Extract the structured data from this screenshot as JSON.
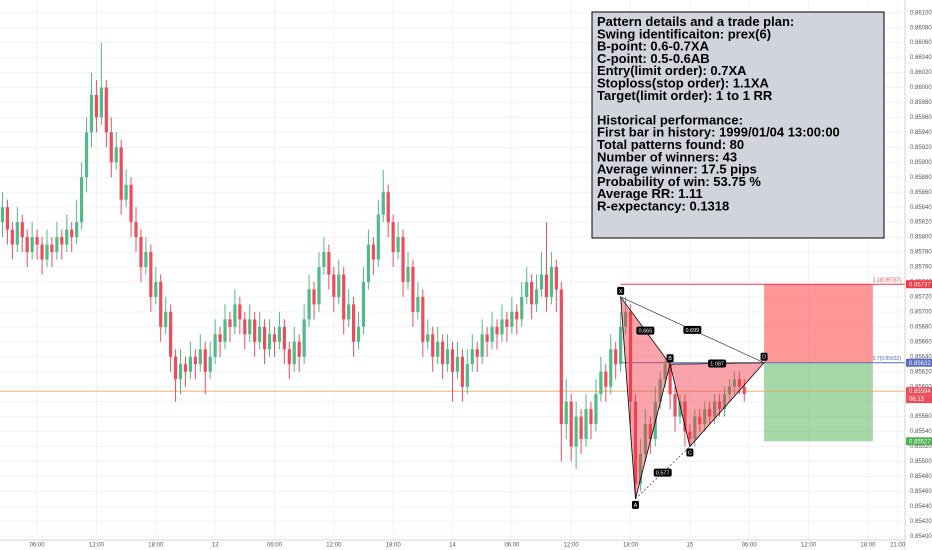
{
  "chart_data": {
    "type": "candlestick",
    "up_color": "#53b987",
    "down_color": "#eb4d5c",
    "grid": true,
    "xlim": [
      -0.5,
      182.5
    ],
    "ylim": [
      0.85395,
      0.86117
    ],
    "xticks": [
      {
        "value": 7,
        "label": "06:00"
      },
      {
        "value": 19,
        "label": "12:00"
      },
      {
        "value": 31,
        "label": "18:00"
      },
      {
        "value": 43,
        "label": "13"
      },
      {
        "value": 55,
        "label": "06:00"
      },
      {
        "value": 67,
        "label": "12:00"
      },
      {
        "value": 79,
        "label": "18:00"
      },
      {
        "value": 91,
        "label": "14"
      },
      {
        "value": 103,
        "label": "06:00"
      },
      {
        "value": 115,
        "label": "12:00"
      },
      {
        "value": 127,
        "label": "18:00"
      },
      {
        "value": 139,
        "label": "15"
      },
      {
        "value": 151,
        "label": "06:00"
      },
      {
        "value": 163,
        "label": "12:00"
      },
      {
        "value": 175,
        "label": "18:00"
      },
      {
        "value": 181,
        "label": "21:00"
      }
    ],
    "yticks": [
      {
        "value": 0.861,
        "label": "0.86100"
      },
      {
        "value": 0.8608,
        "label": "0.86080"
      },
      {
        "value": 0.8606,
        "label": "0.86060"
      },
      {
        "value": 0.8604,
        "label": "0.86040"
      },
      {
        "value": 0.8602,
        "label": "0.86020"
      },
      {
        "value": 0.86,
        "label": "0.86000"
      },
      {
        "value": 0.8598,
        "label": "0.85980"
      },
      {
        "value": 0.8596,
        "label": "0.85960"
      },
      {
        "value": 0.8594,
        "label": "0.85940"
      },
      {
        "value": 0.8592,
        "label": "0.85920"
      },
      {
        "value": 0.859,
        "label": "0.85900"
      },
      {
        "value": 0.8588,
        "label": "0.85880"
      },
      {
        "value": 0.8586,
        "label": "0.85860"
      },
      {
        "value": 0.8584,
        "label": "0.85840"
      },
      {
        "value": 0.8582,
        "label": "0.85820"
      },
      {
        "value": 0.858,
        "label": "0.85800"
      },
      {
        "value": 0.8578,
        "label": "0.85780"
      },
      {
        "value": 0.8576,
        "label": "0.85760"
      },
      {
        "value": 0.8574,
        "label": "0.85740"
      },
      {
        "value": 0.8572,
        "label": "0.85720"
      },
      {
        "value": 0.857,
        "label": "0.85700"
      },
      {
        "value": 0.8568,
        "label": "0.85680"
      },
      {
        "value": 0.8566,
        "label": "0.85660"
      },
      {
        "value": 0.8564,
        "label": "0.85640"
      },
      {
        "value": 0.8562,
        "label": "0.85620"
      },
      {
        "value": 0.856,
        "label": "0.85600"
      },
      {
        "value": 0.8558,
        "label": "0.85580"
      },
      {
        "value": 0.8556,
        "label": "0.85560"
      },
      {
        "value": 0.8554,
        "label": "0.85540"
      },
      {
        "value": 0.8552,
        "label": "0.85520"
      },
      {
        "value": 0.855,
        "label": "0.85500"
      },
      {
        "value": 0.8548,
        "label": "0.85480"
      },
      {
        "value": 0.8546,
        "label": "0.85460"
      },
      {
        "value": 0.8544,
        "label": "0.85440"
      },
      {
        "value": 0.8542,
        "label": "0.85420"
      },
      {
        "value": 0.854,
        "label": "0.85400"
      }
    ],
    "ohlc": [
      [
        0.8582,
        0.8586,
        0.858,
        0.8584
      ],
      [
        0.8584,
        0.8585,
        0.8579,
        0.8581
      ],
      [
        0.8581,
        0.8582,
        0.8577,
        0.8579
      ],
      [
        0.8579,
        0.8584,
        0.8578,
        0.8582
      ],
      [
        0.8582,
        0.8583,
        0.8578,
        0.858
      ],
      [
        0.858,
        0.8581,
        0.8576,
        0.8578
      ],
      [
        0.8578,
        0.8582,
        0.8577,
        0.858
      ],
      [
        0.858,
        0.8581,
        0.8577,
        0.8579
      ],
      [
        0.8579,
        0.858,
        0.8575,
        0.8577
      ],
      [
        0.8577,
        0.8581,
        0.8576,
        0.8579
      ],
      [
        0.8579,
        0.858,
        0.8576,
        0.8578
      ],
      [
        0.8578,
        0.8582,
        0.8577,
        0.858
      ],
      [
        0.858,
        0.8581,
        0.8577,
        0.8579
      ],
      [
        0.8579,
        0.8583,
        0.8578,
        0.8581
      ],
      [
        0.8581,
        0.8582,
        0.8578,
        0.858
      ],
      [
        0.858,
        0.8585,
        0.8579,
        0.8582
      ],
      [
        0.8582,
        0.859,
        0.8581,
        0.8588
      ],
      [
        0.8588,
        0.8596,
        0.8586,
        0.8594
      ],
      [
        0.8594,
        0.8602,
        0.8592,
        0.8599
      ],
      [
        0.8599,
        0.8601,
        0.8594,
        0.8596
      ],
      [
        0.8596,
        0.8606,
        0.8595,
        0.86
      ],
      [
        0.86,
        0.8601,
        0.8592,
        0.8594
      ],
      [
        0.8594,
        0.8596,
        0.8588,
        0.859
      ],
      [
        0.859,
        0.8594,
        0.8589,
        0.8592
      ],
      [
        0.8592,
        0.8593,
        0.8583,
        0.8585
      ],
      [
        0.8585,
        0.8589,
        0.8584,
        0.8587
      ],
      [
        0.8587,
        0.8588,
        0.858,
        0.8582
      ],
      [
        0.8582,
        0.8584,
        0.8578,
        0.858
      ],
      [
        0.858,
        0.8581,
        0.8574,
        0.8576
      ],
      [
        0.8576,
        0.858,
        0.8575,
        0.8578
      ],
      [
        0.8578,
        0.8579,
        0.857,
        0.8572
      ],
      [
        0.8572,
        0.8576,
        0.8571,
        0.8574
      ],
      [
        0.8574,
        0.8575,
        0.8566,
        0.8568
      ],
      [
        0.8568,
        0.8572,
        0.8567,
        0.857
      ],
      [
        0.857,
        0.8571,
        0.8562,
        0.8564
      ],
      [
        0.8564,
        0.8565,
        0.8558,
        0.8561
      ],
      [
        0.8561,
        0.8565,
        0.8559,
        0.8563
      ],
      [
        0.8563,
        0.8564,
        0.856,
        0.8562
      ],
      [
        0.8562,
        0.8566,
        0.8561,
        0.8564
      ],
      [
        0.8564,
        0.8565,
        0.8561,
        0.8563
      ],
      [
        0.8563,
        0.8567,
        0.8562,
        0.8565
      ],
      [
        0.8565,
        0.8566,
        0.8559,
        0.8562
      ],
      [
        0.8562,
        0.8566,
        0.8561,
        0.8564
      ],
      [
        0.8564,
        0.8569,
        0.8563,
        0.8567
      ],
      [
        0.8567,
        0.8568,
        0.8564,
        0.8566
      ],
      [
        0.8566,
        0.8571,
        0.8565,
        0.8569
      ],
      [
        0.8569,
        0.857,
        0.8566,
        0.8568
      ],
      [
        0.8568,
        0.8573,
        0.8567,
        0.8571
      ],
      [
        0.8571,
        0.8572,
        0.8567,
        0.8569
      ],
      [
        0.8569,
        0.857,
        0.8565,
        0.8567
      ],
      [
        0.8567,
        0.8571,
        0.8566,
        0.8569
      ],
      [
        0.8569,
        0.857,
        0.8564,
        0.8566
      ],
      [
        0.8566,
        0.857,
        0.8565,
        0.8568
      ],
      [
        0.8568,
        0.8569,
        0.8563,
        0.8565
      ],
      [
        0.8565,
        0.8569,
        0.8564,
        0.8567
      ],
      [
        0.8567,
        0.8568,
        0.8564,
        0.8566
      ],
      [
        0.8566,
        0.857,
        0.8565,
        0.8568
      ],
      [
        0.8568,
        0.8569,
        0.8563,
        0.8565
      ],
      [
        0.8565,
        0.8566,
        0.8561,
        0.8563
      ],
      [
        0.8563,
        0.8568,
        0.8562,
        0.8566
      ],
      [
        0.8566,
        0.8567,
        0.8562,
        0.8564
      ],
      [
        0.8564,
        0.8571,
        0.8563,
        0.8569
      ],
      [
        0.8569,
        0.8575,
        0.8568,
        0.8573
      ],
      [
        0.8573,
        0.8574,
        0.8569,
        0.8571
      ],
      [
        0.8571,
        0.8578,
        0.857,
        0.8576
      ],
      [
        0.8576,
        0.858,
        0.8575,
        0.8578
      ],
      [
        0.8578,
        0.8579,
        0.8573,
        0.8575
      ],
      [
        0.8575,
        0.8576,
        0.857,
        0.8572
      ],
      [
        0.8572,
        0.8577,
        0.8571,
        0.8575
      ],
      [
        0.8575,
        0.8576,
        0.8567,
        0.8569
      ],
      [
        0.8569,
        0.8573,
        0.8568,
        0.8571
      ],
      [
        0.8571,
        0.8572,
        0.8564,
        0.8566
      ],
      [
        0.8566,
        0.857,
        0.8565,
        0.8568
      ],
      [
        0.8568,
        0.8576,
        0.8567,
        0.8574
      ],
      [
        0.8574,
        0.8581,
        0.8573,
        0.8579
      ],
      [
        0.8579,
        0.858,
        0.8575,
        0.8577
      ],
      [
        0.8577,
        0.8585,
        0.8576,
        0.8583
      ],
      [
        0.8583,
        0.8589,
        0.8582,
        0.8586
      ],
      [
        0.8586,
        0.8587,
        0.858,
        0.8582
      ],
      [
        0.8582,
        0.8583,
        0.8576,
        0.8578
      ],
      [
        0.8578,
        0.8582,
        0.8577,
        0.858
      ],
      [
        0.858,
        0.8581,
        0.8572,
        0.8574
      ],
      [
        0.8574,
        0.8578,
        0.8573,
        0.8576
      ],
      [
        0.8576,
        0.8577,
        0.8568,
        0.857
      ],
      [
        0.857,
        0.8574,
        0.8569,
        0.8572
      ],
      [
        0.8572,
        0.8573,
        0.8564,
        0.8566
      ],
      [
        0.8566,
        0.8569,
        0.8565,
        0.8567
      ],
      [
        0.8567,
        0.8568,
        0.8562,
        0.8564
      ],
      [
        0.8564,
        0.8568,
        0.8563,
        0.8566
      ],
      [
        0.8566,
        0.8567,
        0.8561,
        0.8563
      ],
      [
        0.8563,
        0.8567,
        0.8562,
        0.8565
      ],
      [
        0.8565,
        0.8566,
        0.8558,
        0.8562
      ],
      [
        0.8562,
        0.8566,
        0.8561,
        0.8564
      ],
      [
        0.8564,
        0.8565,
        0.8558,
        0.856
      ],
      [
        0.856,
        0.8565,
        0.8559,
        0.8563
      ],
      [
        0.8563,
        0.8567,
        0.8562,
        0.8565
      ],
      [
        0.8565,
        0.8566,
        0.8562,
        0.8564
      ],
      [
        0.8564,
        0.8569,
        0.8563,
        0.8567
      ],
      [
        0.8567,
        0.8568,
        0.8564,
        0.8566
      ],
      [
        0.8566,
        0.857,
        0.8565,
        0.8568
      ],
      [
        0.8568,
        0.8569,
        0.8565,
        0.8567
      ],
      [
        0.8567,
        0.8571,
        0.8566,
        0.8569
      ],
      [
        0.8569,
        0.857,
        0.8566,
        0.8568
      ],
      [
        0.8568,
        0.8572,
        0.8567,
        0.857
      ],
      [
        0.857,
        0.8571,
        0.8567,
        0.8569
      ],
      [
        0.8569,
        0.8574,
        0.8568,
        0.8572
      ],
      [
        0.8572,
        0.8576,
        0.8571,
        0.8574
      ],
      [
        0.8574,
        0.8575,
        0.8569,
        0.8571
      ],
      [
        0.8571,
        0.8575,
        0.857,
        0.8573
      ],
      [
        0.8573,
        0.8578,
        0.8572,
        0.8575
      ],
      [
        0.8575,
        0.8582,
        0.857,
        0.8572
      ],
      [
        0.8572,
        0.8578,
        0.8571,
        0.8576
      ],
      [
        0.8576,
        0.8577,
        0.857,
        0.8573
      ],
      [
        0.8573,
        0.8574,
        0.855,
        0.8555
      ],
      [
        0.8555,
        0.8561,
        0.8553,
        0.8558
      ],
      [
        0.8558,
        0.8559,
        0.855,
        0.8552
      ],
      [
        0.8552,
        0.8558,
        0.8549,
        0.8556
      ],
      [
        0.8556,
        0.8557,
        0.8551,
        0.8553
      ],
      [
        0.8553,
        0.8559,
        0.8552,
        0.8557
      ],
      [
        0.8557,
        0.8558,
        0.8553,
        0.8555
      ],
      [
        0.8555,
        0.8561,
        0.8554,
        0.8559
      ],
      [
        0.8559,
        0.8564,
        0.8558,
        0.8562
      ],
      [
        0.8562,
        0.8563,
        0.8558,
        0.856
      ],
      [
        0.856,
        0.8567,
        0.8559,
        0.8565
      ],
      [
        0.8565,
        0.8566,
        0.8561,
        0.8563
      ],
      [
        0.8563,
        0.857,
        0.8562,
        0.8568
      ],
      [
        0.8568,
        0.8572,
        0.8567,
        0.857
      ],
      [
        0.857,
        0.8571,
        0.8555,
        0.8558
      ],
      [
        0.8558,
        0.8559,
        0.8545,
        0.8547
      ],
      [
        0.8547,
        0.8553,
        0.8546,
        0.8551
      ],
      [
        0.8551,
        0.8557,
        0.855,
        0.8555
      ],
      [
        0.8555,
        0.8556,
        0.8551,
        0.8553
      ],
      [
        0.8553,
        0.856,
        0.8552,
        0.8558
      ],
      [
        0.8558,
        0.8562,
        0.8557,
        0.8561
      ],
      [
        0.8561,
        0.8564,
        0.856,
        0.8563
      ],
      [
        0.8563,
        0.8564,
        0.8557,
        0.8559
      ],
      [
        0.8559,
        0.856,
        0.8554,
        0.8556
      ],
      [
        0.8556,
        0.8559,
        0.8555,
        0.8558
      ],
      [
        0.8558,
        0.8559,
        0.8552,
        0.8554
      ],
      [
        0.8554,
        0.8555,
        0.8552,
        0.8553
      ],
      [
        0.8553,
        0.8557,
        0.8552,
        0.8556
      ],
      [
        0.8556,
        0.8557,
        0.8554,
        0.8555
      ],
      [
        0.8555,
        0.8558,
        0.8554,
        0.8557
      ],
      [
        0.8557,
        0.8558,
        0.8555,
        0.8556
      ],
      [
        0.8556,
        0.8559,
        0.8555,
        0.8558
      ],
      [
        0.8558,
        0.8559,
        0.8556,
        0.8557
      ],
      [
        0.8557,
        0.856,
        0.8556,
        0.8559
      ],
      [
        0.8559,
        0.8561,
        0.8558,
        0.856
      ],
      [
        0.856,
        0.8562,
        0.8559,
        0.8561
      ],
      [
        0.8561,
        0.8562,
        0.8559,
        0.856
      ],
      [
        0.856,
        0.8561,
        0.8558,
        0.8559
      ]
    ],
    "pattern": {
      "points": [
        {
          "label": "X",
          "x": 125,
          "price": 0.8572
        },
        {
          "label": "A",
          "x": 128,
          "price": 0.8545
        },
        {
          "label": "B",
          "x": 135,
          "price": 0.8563
        },
        {
          "label": "C",
          "x": 139,
          "price": 0.8552
        },
        {
          "label": "D",
          "x": 154,
          "price": 0.85632
        }
      ],
      "ratios": [
        "0.665",
        "0.699",
        "1.087",
        "0.577"
      ]
    },
    "trade": {
      "start": 154,
      "end": 176,
      "stop": 0.85737,
      "entry": 0.85632,
      "target": 0.85527,
      "stop_label": "1.1(0.85737)",
      "entry_label": "0.7(0.85632)"
    },
    "last_price": 0.85594,
    "countdown": "06:13",
    "info": {
      "title": "Pattern details and a trade plan:",
      "plan": [
        "Swing identificaiton: prex(6)",
        "B-point: 0.6-0.7XA",
        "C-point: 0.5-0.6AB",
        "Entry(limit order): 0.7XA",
        "Stoploss(stop order): 1.1XA",
        "Target(limit order): 1 to 1 RR"
      ],
      "performance_title": "Historical performance:",
      "performance": [
        "First bar in history: 1999/01/04 13:00:00",
        "Total patterns found: 80",
        "Number of winners: 43",
        "Average winner: 17.5 pips",
        "Probability of win: 53.75 %",
        "Average RR: 1.11",
        "R-expectancy: 0.1318"
      ]
    }
  }
}
